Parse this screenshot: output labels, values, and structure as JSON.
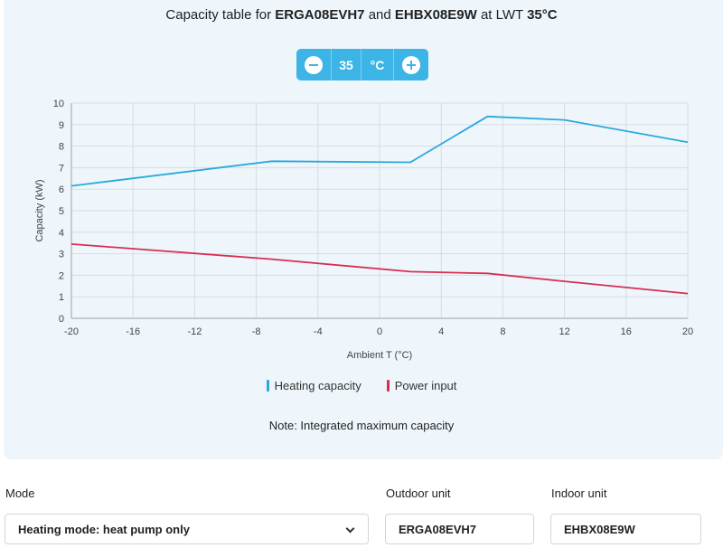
{
  "header": {
    "title_prefix": "Capacity table for",
    "outdoor_model": "ERGA08EVH7",
    "and_word": "and",
    "indoor_model": "EHBX08E9W",
    "at_lwt": "at LWT",
    "lwt_value": "35°C"
  },
  "stepper": {
    "value": "35",
    "unit": "°C",
    "minus_icon": "minus-circle-icon",
    "plus_icon": "plus-circle-icon"
  },
  "chart_data": {
    "type": "line",
    "title": "",
    "xlabel": "Ambient T (°C)",
    "ylabel": "Capacity (kW)",
    "xlim": [
      -20,
      20
    ],
    "ylim": [
      0,
      10
    ],
    "xticks": [
      -20,
      -16,
      -12,
      -8,
      -4,
      0,
      4,
      8,
      12,
      16,
      20
    ],
    "yticks": [
      0,
      1,
      2,
      3,
      4,
      5,
      6,
      7,
      8,
      9,
      10
    ],
    "grid": true,
    "legend_position": "bottom",
    "series": [
      {
        "name": "Heating capacity",
        "color": "#2ba8dc",
        "points": [
          [
            -20,
            6.15
          ],
          [
            -7,
            7.3
          ],
          [
            2,
            7.25
          ],
          [
            7,
            9.38
          ],
          [
            12,
            9.22
          ],
          [
            20,
            8.18
          ]
        ]
      },
      {
        "name": "Power input",
        "color": "#d6304f",
        "points": [
          [
            -20,
            3.45
          ],
          [
            -7,
            2.75
          ],
          [
            2,
            2.17
          ],
          [
            7,
            2.09
          ],
          [
            12,
            1.72
          ],
          [
            20,
            1.15
          ]
        ]
      }
    ]
  },
  "note": "Note: Integrated maximum capacity",
  "form": {
    "mode_label": "Mode",
    "mode_value": "Heating mode: heat pump only",
    "outdoor_label": "Outdoor unit",
    "outdoor_value": "ERGA08EVH7",
    "indoor_label": "Indoor unit",
    "indoor_value": "EHBX08E9W"
  }
}
